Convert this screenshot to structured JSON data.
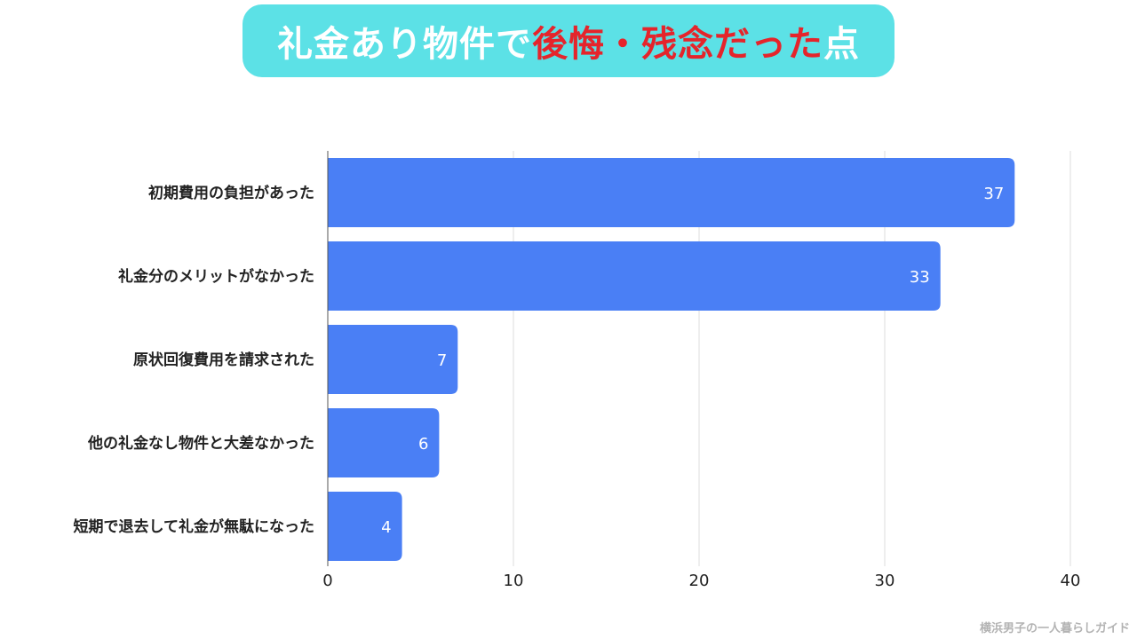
{
  "header": {
    "title_part1": "礼金あり物件で",
    "title_part2": "後悔・残念だった",
    "title_part3": "点"
  },
  "credit": "横浜男子の一人暮らしガイド",
  "colors": {
    "title_bg": "#5ce1e6",
    "title_text": "#ffffff",
    "title_accent": "#e5242b",
    "bar": "#4a7ff5",
    "grid": "#dddddd"
  },
  "chart_data": {
    "type": "bar",
    "orientation": "horizontal",
    "categories": [
      "初期費用の負担があった",
      "礼金分のメリットがなかった",
      "原状回復費用を請求された",
      "他の礼金なし物件と大差なかった",
      "短期で退去して礼金が無駄になった"
    ],
    "values": [
      37,
      33,
      7,
      6,
      4
    ],
    "xlim": [
      0,
      40
    ],
    "xticks": [
      0,
      10,
      20,
      30,
      40
    ],
    "grid": true,
    "data_labels": true,
    "legend": "none"
  }
}
